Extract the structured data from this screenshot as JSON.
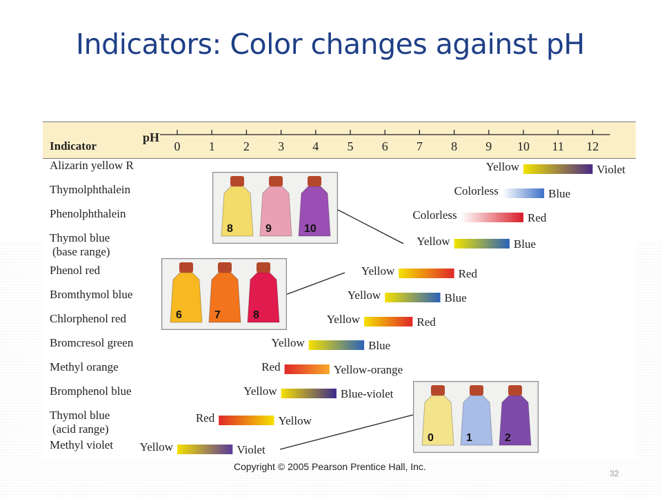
{
  "slide": {
    "title": "Indicators: Color changes against pH",
    "copyright": "Copyright © 2005 Pearson Prentice Hall, Inc.",
    "page_number": "32"
  },
  "chart_data": {
    "type": "bar",
    "header_label": "Indicator",
    "axis_label": "pH",
    "ticks": [
      "0",
      "1",
      "2",
      "3",
      "4",
      "5",
      "6",
      "7",
      "8",
      "9",
      "10",
      "11",
      "12"
    ],
    "xlim": [
      0,
      12
    ],
    "indicators": [
      {
        "name": "Alizarin yellow R",
        "start": 10.0,
        "end": 12.0,
        "from": "Yellow",
        "to": "Violet",
        "from_hex": "#f2e300",
        "to_hex": "#4b2a86"
      },
      {
        "name": "Thymolphthalein",
        "start": 9.4,
        "end": 10.6,
        "from": "Colorless",
        "to": "Blue",
        "from_hex": "#ffffff",
        "to_hex": "#3d6fc8"
      },
      {
        "name": "Phenolphthalein",
        "start": 8.2,
        "end": 10.0,
        "from": "Colorless",
        "to": "Red",
        "from_hex": "#ffffff",
        "to_hex": "#d81e2a"
      },
      {
        "name": "Thymol blue",
        "sub": "(base range)",
        "start": 8.0,
        "end": 9.6,
        "from": "Yellow",
        "to": "Blue",
        "from_hex": "#f2e300",
        "to_hex": "#2c62b8"
      },
      {
        "name": "Phenol red",
        "start": 6.4,
        "end": 8.0,
        "from": "Yellow",
        "to": "Red",
        "from_hex": "#f5e000",
        "to_hex": "#e0282a"
      },
      {
        "name": "Bromthymol blue",
        "start": 6.0,
        "end": 7.6,
        "from": "Yellow",
        "to": "Blue",
        "from_hex": "#f5e000",
        "to_hex": "#2c62b8"
      },
      {
        "name": "Chlorphenol red",
        "start": 5.4,
        "end": 6.8,
        "from": "Yellow",
        "to": "Red",
        "from_hex": "#f5e000",
        "to_hex": "#e0282a"
      },
      {
        "name": "Bromcresol green",
        "start": 3.8,
        "end": 5.4,
        "from": "Yellow",
        "to": "Blue",
        "from_hex": "#f5e000",
        "to_hex": "#2c62b8"
      },
      {
        "name": "Methyl orange",
        "start": 3.1,
        "end": 4.4,
        "from": "Red",
        "to": "Yellow-orange",
        "from_hex": "#e0282a",
        "to_hex": "#f7a82a"
      },
      {
        "name": "Bromphenol blue",
        "start": 3.0,
        "end": 4.6,
        "from": "Yellow",
        "to": "Blue-violet",
        "from_hex": "#f5e000",
        "to_hex": "#3b2a8a"
      },
      {
        "name": "Thymol blue",
        "sub": "(acid range)",
        "start": 1.2,
        "end": 2.8,
        "from": "Red",
        "to": "Yellow",
        "from_hex": "#e0282a",
        "to_hex": "#f5e000"
      },
      {
        "name": "Methyl violet",
        "start": 0.0,
        "end": 1.6,
        "from": "Yellow",
        "to": "Violet",
        "from_hex": "#f5e000",
        "to_hex": "#5a3a9a"
      }
    ],
    "photos": [
      {
        "labels": [
          "8",
          "9",
          "10"
        ],
        "colors": [
          "#f3dc6a",
          "#e9a0b4",
          "#9a4fb4"
        ]
      },
      {
        "labels": [
          "6",
          "7",
          "8"
        ],
        "colors": [
          "#f7b822",
          "#f2741d",
          "#e11b4e"
        ]
      },
      {
        "labels": [
          "0",
          "1",
          "2"
        ],
        "colors": [
          "#f3e38a",
          "#a9bde9",
          "#7f4bab"
        ]
      }
    ]
  }
}
